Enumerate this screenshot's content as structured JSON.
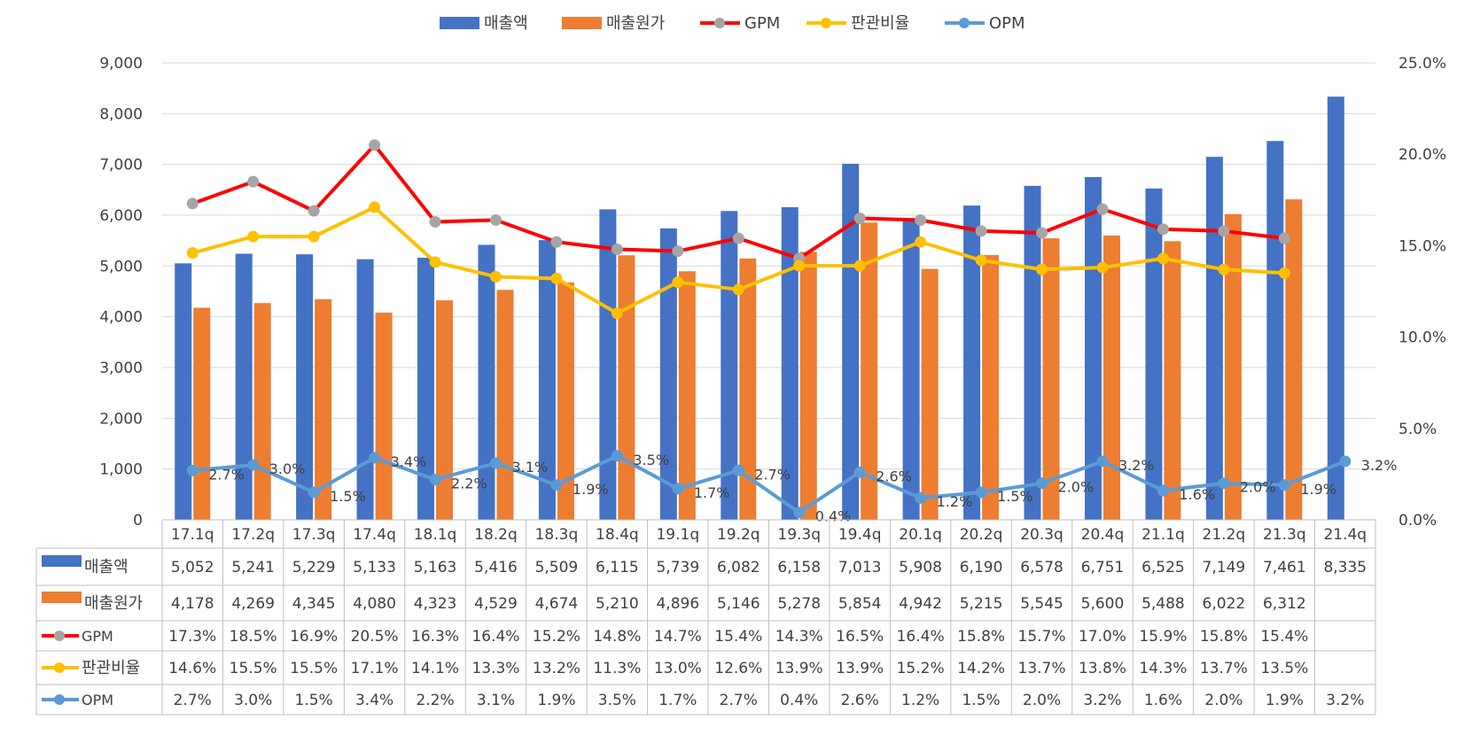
{
  "chart_data": {
    "type": "bar",
    "categories": [
      "17.1q",
      "17.2q",
      "17.3q",
      "17.4q",
      "18.1q",
      "18.2q",
      "18.3q",
      "18.4q",
      "19.1q",
      "19.2q",
      "19.3q",
      "19.4q",
      "20.1q",
      "20.2q",
      "20.3q",
      "20.4q",
      "21.1q",
      "21.2q",
      "21.3q",
      "21.4q"
    ],
    "series": [
      {
        "name": "매출액",
        "type": "bar",
        "axis": "left",
        "color": "#4472C4",
        "values": [
          5052,
          5241,
          5229,
          5133,
          5163,
          5416,
          5509,
          6115,
          5739,
          6082,
          6158,
          7013,
          5908,
          6190,
          6578,
          6751,
          6525,
          7149,
          7461,
          8335
        ]
      },
      {
        "name": "매출원가",
        "type": "bar",
        "axis": "left",
        "color": "#ED7D31",
        "values": [
          4178,
          4269,
          4345,
          4080,
          4323,
          4529,
          4674,
          5210,
          4896,
          5146,
          5278,
          5854,
          4942,
          5215,
          5545,
          5600,
          5488,
          6022,
          6312,
          null
        ]
      },
      {
        "name": "GPM",
        "type": "line",
        "axis": "right",
        "color": "#FF0000",
        "marker_color": "#A5A5A5",
        "values": [
          17.3,
          18.5,
          16.9,
          20.5,
          16.3,
          16.4,
          15.2,
          14.8,
          14.7,
          15.4,
          14.3,
          16.5,
          16.4,
          15.8,
          15.7,
          17.0,
          15.9,
          15.8,
          15.4,
          null
        ]
      },
      {
        "name": "판관비율",
        "type": "line",
        "axis": "right",
        "color": "#FFC000",
        "marker_color": "#FFC000",
        "values": [
          14.6,
          15.5,
          15.5,
          17.1,
          14.1,
          13.3,
          13.2,
          11.3,
          13.0,
          12.6,
          13.9,
          13.9,
          15.2,
          14.2,
          13.7,
          13.8,
          14.3,
          13.7,
          13.5,
          null
        ]
      },
      {
        "name": "OPM",
        "type": "line",
        "axis": "right",
        "color": "#5B9BD5",
        "marker_color": "#5B9BD5",
        "data_labels": true,
        "values": [
          2.7,
          3.0,
          1.5,
          3.4,
          2.2,
          3.1,
          1.9,
          3.5,
          1.7,
          2.7,
          0.4,
          2.6,
          1.2,
          1.5,
          2.0,
          3.2,
          1.6,
          2.0,
          1.9,
          3.2
        ]
      }
    ],
    "y_left": {
      "min": 0,
      "max": 9000,
      "step": 1000,
      "ticks": [
        "0",
        "1,000",
        "2,000",
        "3,000",
        "4,000",
        "5,000",
        "6,000",
        "7,000",
        "8,000",
        "9,000"
      ]
    },
    "y_right": {
      "min": 0,
      "max": 25,
      "step": 5,
      "ticks": [
        "0.0%",
        "5.0%",
        "10.0%",
        "15.0%",
        "20.0%",
        "25.0%"
      ]
    },
    "legend": {
      "position": "top",
      "items": [
        "매출액",
        "매출원가",
        "GPM",
        "판관비율",
        "OPM"
      ]
    },
    "data_table": {
      "rows": [
        {
          "name": "매출액",
          "cells": [
            "5,052",
            "5,241",
            "5,229",
            "5,133",
            "5,163",
            "5,416",
            "5,509",
            "6,115",
            "5,739",
            "6,082",
            "6,158",
            "7,013",
            "5,908",
            "6,190",
            "6,578",
            "6,751",
            "6,525",
            "7,149",
            "7,461",
            "8,335"
          ]
        },
        {
          "name": "매출원가",
          "cells": [
            "4,178",
            "4,269",
            "4,345",
            "4,080",
            "4,323",
            "4,529",
            "4,674",
            "5,210",
            "4,896",
            "5,146",
            "5,278",
            "5,854",
            "4,942",
            "5,215",
            "5,545",
            "5,600",
            "5,488",
            "6,022",
            "6,312",
            ""
          ]
        },
        {
          "name": "GPM",
          "cells": [
            "17.3%",
            "18.5%",
            "16.9%",
            "20.5%",
            "16.3%",
            "16.4%",
            "15.2%",
            "14.8%",
            "14.7%",
            "15.4%",
            "14.3%",
            "16.5%",
            "16.4%",
            "15.8%",
            "15.7%",
            "17.0%",
            "15.9%",
            "15.8%",
            "15.4%",
            ""
          ]
        },
        {
          "name": "판관비율",
          "cells": [
            "14.6%",
            "15.5%",
            "15.5%",
            "17.1%",
            "14.1%",
            "13.3%",
            "13.2%",
            "11.3%",
            "13.0%",
            "12.6%",
            "13.9%",
            "13.9%",
            "15.2%",
            "14.2%",
            "13.7%",
            "13.8%",
            "14.3%",
            "13.7%",
            "13.5%",
            ""
          ]
        },
        {
          "name": "OPM",
          "cells": [
            "2.7%",
            "3.0%",
            "1.5%",
            "3.4%",
            "2.2%",
            "3.1%",
            "1.9%",
            "3.5%",
            "1.7%",
            "2.7%",
            "0.4%",
            "2.6%",
            "1.2%",
            "1.5%",
            "2.0%",
            "3.2%",
            "1.6%",
            "2.0%",
            "1.9%",
            "3.2%"
          ]
        }
      ]
    }
  }
}
